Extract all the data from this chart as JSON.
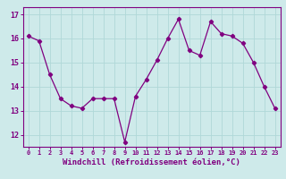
{
  "x": [
    0,
    1,
    2,
    3,
    4,
    5,
    6,
    7,
    8,
    9,
    10,
    11,
    12,
    13,
    14,
    15,
    16,
    17,
    18,
    19,
    20,
    21,
    22,
    23
  ],
  "y": [
    16.1,
    15.9,
    14.5,
    13.5,
    13.2,
    13.1,
    13.5,
    13.5,
    13.5,
    11.7,
    13.6,
    14.3,
    15.1,
    16.0,
    16.8,
    15.5,
    15.3,
    16.7,
    16.2,
    16.1,
    15.8,
    15.0,
    14.0,
    13.1
  ],
  "line_color": "#800080",
  "marker": "D",
  "marker_size": 2.2,
  "bg_color": "#ceeaea",
  "grid_color": "#b0d8d8",
  "xlabel": "Windchill (Refroidissement éolien,°C)",
  "xlabel_color": "#800080",
  "tick_color": "#800080",
  "spine_color": "#800080",
  "ylim": [
    11.5,
    17.3
  ],
  "yticks": [
    12,
    13,
    14,
    15,
    16,
    17
  ],
  "xticks": [
    0,
    1,
    2,
    3,
    4,
    5,
    6,
    7,
    8,
    9,
    10,
    11,
    12,
    13,
    14,
    15,
    16,
    17,
    18,
    19,
    20,
    21,
    22,
    23
  ],
  "xlim": [
    -0.5,
    23.5
  ],
  "xlabel_fontsize": 6.5,
  "xtick_fontsize": 5.0,
  "ytick_fontsize": 6.0
}
